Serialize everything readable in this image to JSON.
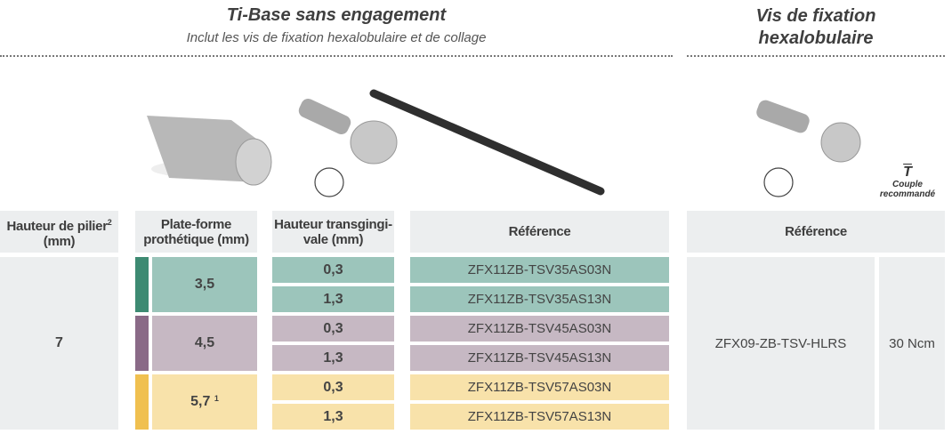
{
  "left_section": {
    "title": "Ti-Base sans engagement",
    "subtitle": "Inclut les vis de fixation hexalobulaire et de collage"
  },
  "right_section": {
    "title_line1": "Vis de fixation",
    "title_line2": "hexalobulaire",
    "torque_symbol": "T",
    "torque_label_line1": "Couple",
    "torque_label_line2": "recommandé"
  },
  "headers": {
    "abutment_height": "Hauteur de pilier",
    "abutment_height_sup": "2",
    "abutment_height_unit": "(mm)",
    "platform_line1": "Plate-forme",
    "platform_line2": "prothétique (mm)",
    "gingival_line1": "Hauteur transgingi-",
    "gingival_line2": "vale (mm)",
    "reference": "Référence",
    "screw_reference": "Référence"
  },
  "abutment_height": "7",
  "colors": {
    "teal": "#3d8a72",
    "purple": "#8a6a87",
    "yellow": "#f0c050"
  },
  "platforms": [
    {
      "value": "3,5",
      "sup": "",
      "rows": [
        {
          "gingival": "0,3",
          "reference": "ZFX11ZB-TSV35AS03N"
        },
        {
          "gingival": "1,3",
          "reference": "ZFX11ZB-TSV35AS13N"
        }
      ]
    },
    {
      "value": "4,5",
      "sup": "",
      "rows": [
        {
          "gingival": "0,3",
          "reference": "ZFX11ZB-TSV45AS03N"
        },
        {
          "gingival": "1,3",
          "reference": "ZFX11ZB-TSV45AS13N"
        }
      ]
    },
    {
      "value": "5,7",
      "sup": "1",
      "rows": [
        {
          "gingival": "0,3",
          "reference": "ZFX11ZB-TSV57AS03N"
        },
        {
          "gingival": "1,3",
          "reference": "ZFX11ZB-TSV57AS13N"
        }
      ]
    }
  ],
  "screw": {
    "reference": "ZFX09-ZB-TSV-HLRS",
    "torque": "30 Ncm"
  }
}
